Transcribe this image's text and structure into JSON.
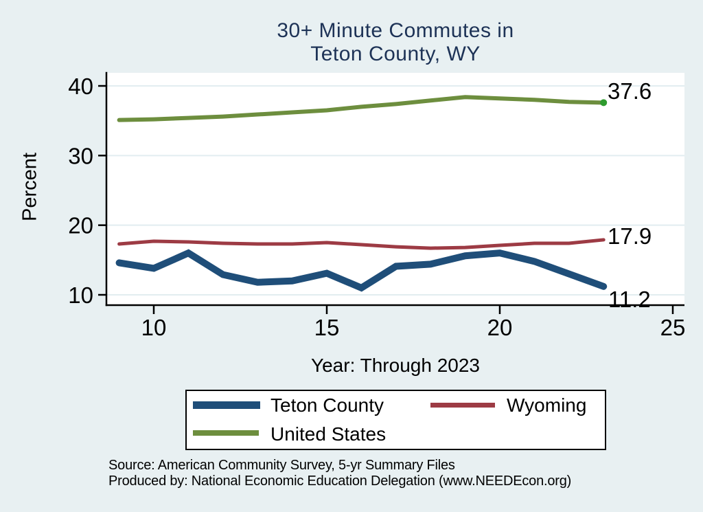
{
  "header": {
    "title_line1": "30+ Minute Commutes in",
    "title_line2": "Teton County, WY"
  },
  "chart_data": {
    "type": "line",
    "title": "30+ Minute Commutes in Teton County, WY",
    "xlabel": "Year: Through 2023",
    "ylabel": "Percent",
    "x": [
      9,
      10,
      11,
      12,
      13,
      14,
      15,
      16,
      17,
      18,
      19,
      20,
      21,
      22,
      23
    ],
    "series": [
      {
        "name": "Teton County",
        "color": "#1f4e79",
        "line_width": 10,
        "values": [
          14.6,
          13.8,
          16.0,
          12.9,
          11.8,
          12.0,
          13.1,
          11.0,
          14.1,
          14.4,
          15.6,
          16.0,
          14.8,
          13.0,
          11.2
        ],
        "end_label": "11.2"
      },
      {
        "name": "Wyoming",
        "color": "#9d3b44",
        "line_width": 5,
        "values": [
          17.3,
          17.7,
          17.6,
          17.4,
          17.3,
          17.3,
          17.5,
          17.2,
          16.9,
          16.7,
          16.8,
          17.1,
          17.4,
          17.4,
          17.9
        ],
        "end_label": "17.9"
      },
      {
        "name": "United States",
        "color": "#6d8e3e",
        "line_width": 6,
        "values": [
          35.1,
          35.2,
          35.4,
          35.6,
          35.9,
          36.2,
          36.5,
          37.0,
          37.4,
          37.9,
          38.4,
          38.2,
          38.0,
          37.7,
          37.6
        ],
        "end_label": "37.6",
        "end_marker_color": "#2e9b2e"
      }
    ],
    "x_ticks": [
      10,
      15,
      20,
      25
    ],
    "y_ticks": [
      10,
      20,
      30,
      40
    ],
    "xlim": [
      8.6,
      25.3
    ],
    "ylim": [
      8.5,
      41.9
    ],
    "grid": true,
    "legend_position": "bottom"
  },
  "footer": {
    "source": "Source: American Community Survey, 5-yr Summary Files",
    "produced_by": "Produced by: National Economic Education Delegation (www.NEEDEcon.org)"
  },
  "colors": {
    "background": "#e8f0f2",
    "plot_background": "#ffffff",
    "gridline": "#e2edf0",
    "title_text": "#1d3256",
    "axis_text": "#000000",
    "legend_background": "#ffffff",
    "legend_border": "#000000"
  }
}
